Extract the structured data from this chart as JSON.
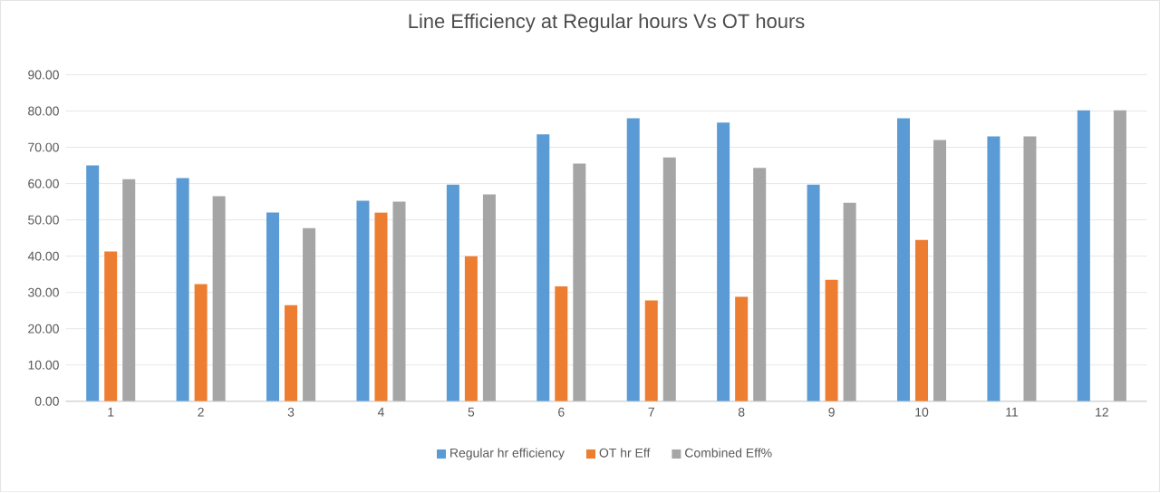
{
  "chart_data": {
    "type": "bar",
    "title": "Line Efficiency at Regular hours Vs OT hours",
    "categories": [
      "1",
      "2",
      "3",
      "4",
      "5",
      "6",
      "7",
      "8",
      "9",
      "10",
      "11",
      "12"
    ],
    "series": [
      {
        "name": "Regular hr efficiency",
        "color": "#5b9bd5",
        "values": [
          65,
          61.5,
          52,
          55.3,
          59.7,
          73.6,
          78,
          76.8,
          59.7,
          78,
          73,
          80.2
        ]
      },
      {
        "name": "OT hr Eff",
        "color": "#ed7d31",
        "values": [
          41.3,
          32.3,
          26.5,
          52,
          40,
          31.7,
          27.8,
          28.8,
          33.5,
          44.5,
          null,
          null
        ]
      },
      {
        "name": "Combined Eff%",
        "color": "#a5a5a5",
        "values": [
          61.2,
          56.5,
          47.7,
          55,
          57,
          65.5,
          67.2,
          64.3,
          54.7,
          72,
          73,
          80.2
        ]
      }
    ],
    "ylim": [
      0,
      90
    ],
    "yticks": [
      {
        "value": 0,
        "label": "0.00"
      },
      {
        "value": 10,
        "label": "10.00"
      },
      {
        "value": 20,
        "label": "20.00"
      },
      {
        "value": 30,
        "label": "30.00"
      },
      {
        "value": 40,
        "label": "40.00"
      },
      {
        "value": 50,
        "label": "50.00"
      },
      {
        "value": 60,
        "label": "60.00"
      },
      {
        "value": 70,
        "label": "70.00"
      },
      {
        "value": 80,
        "label": "80.00"
      },
      {
        "value": 90,
        "label": "90.00"
      }
    ],
    "grid": "y",
    "legend": "bottom"
  }
}
